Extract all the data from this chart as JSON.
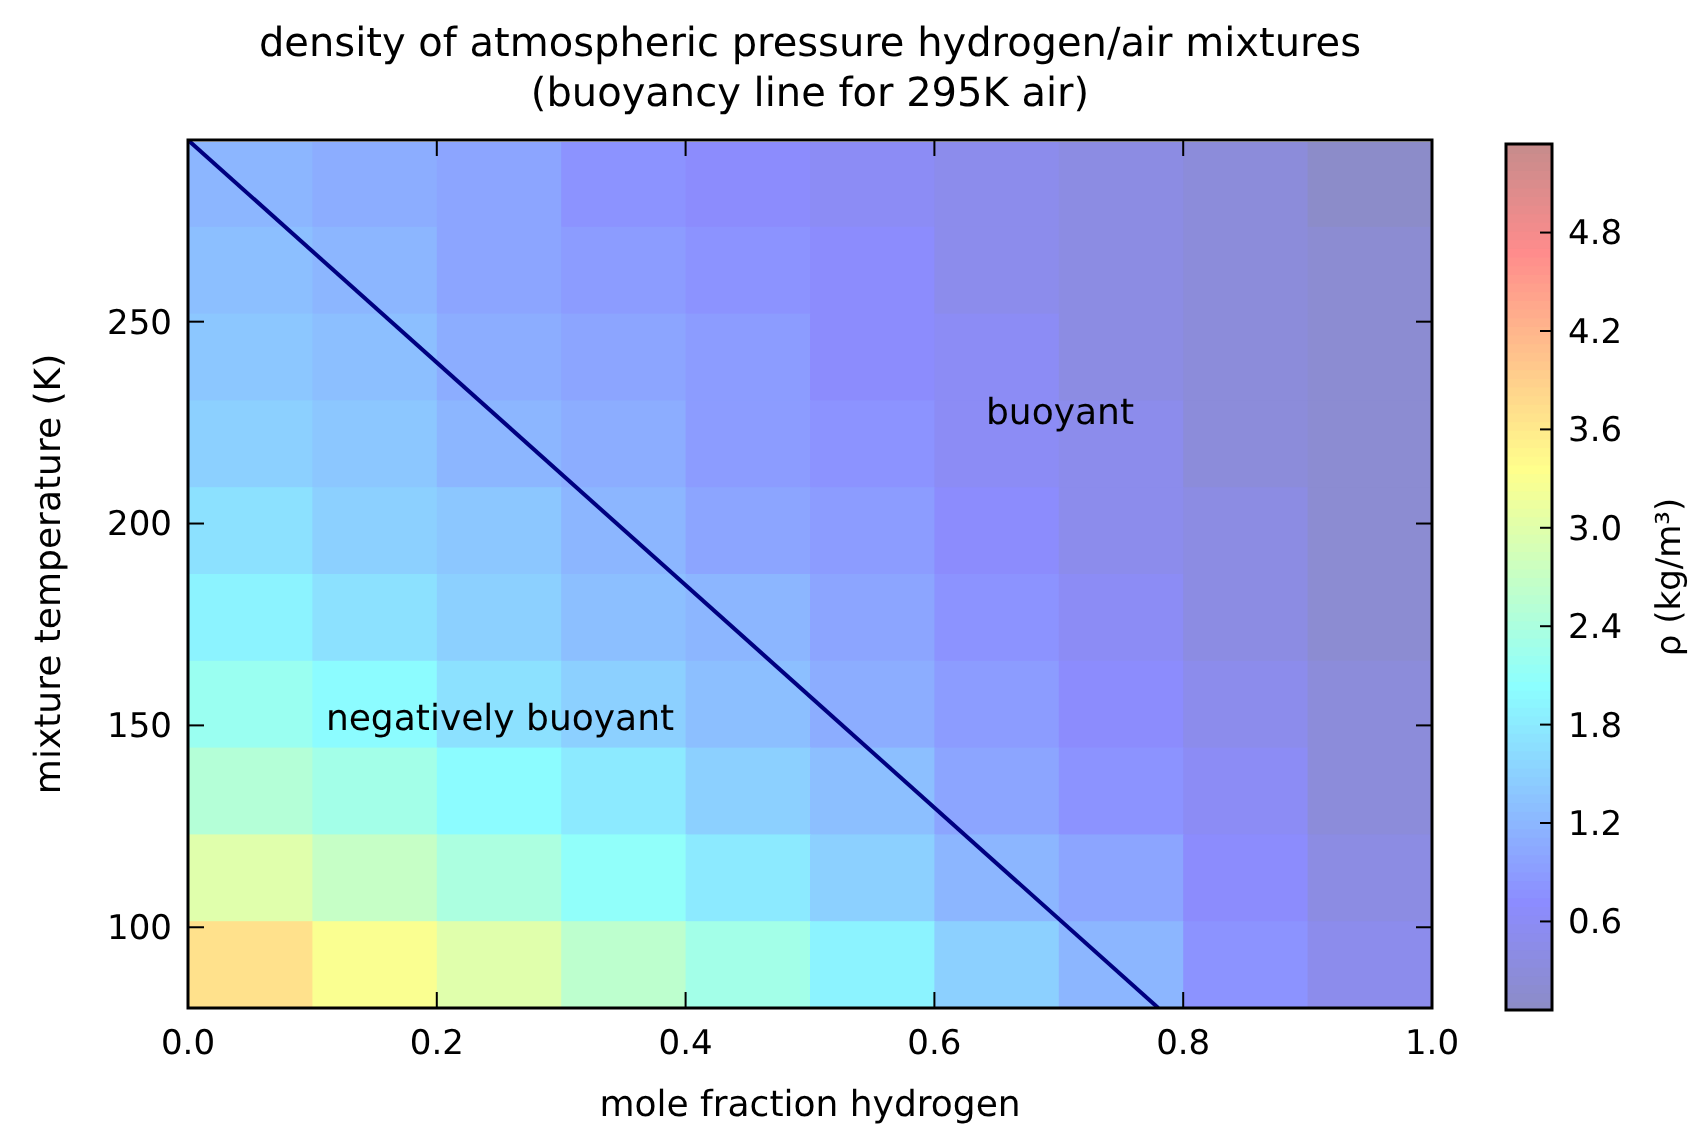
{
  "chart_data": {
    "type": "heatmap",
    "title": "density of atmospheric pressure hydrogen/air mixtures\n(buoyancy line for 295K air)",
    "xlabel": "mole fraction hydrogen",
    "ylabel": "mixture temperature (K)",
    "clabel": "ρ (kg/m³)",
    "x": [
      0.05,
      0.15,
      0.25,
      0.35,
      0.45,
      0.55,
      0.65,
      0.75,
      0.85,
      0.95
    ],
    "y": [
      284,
      263,
      241,
      220,
      198,
      177,
      155,
      134,
      112,
      91
    ],
    "cells": [
      [
        1.2,
        1.1,
        1.0,
        0.8,
        0.7,
        0.6,
        0.5,
        0.4,
        0.3,
        0.1
      ],
      [
        1.3,
        1.2,
        1.0,
        0.9,
        0.8,
        0.7,
        0.5,
        0.4,
        0.3,
        0.2
      ],
      [
        1.4,
        1.3,
        1.1,
        1.0,
        0.9,
        0.7,
        0.6,
        0.4,
        0.3,
        0.2
      ],
      [
        1.5,
        1.4,
        1.2,
        1.1,
        0.9,
        0.8,
        0.6,
        0.5,
        0.3,
        0.2
      ],
      [
        1.7,
        1.5,
        1.4,
        1.2,
        1.0,
        0.9,
        0.7,
        0.5,
        0.4,
        0.2
      ],
      [
        1.9,
        1.7,
        1.5,
        1.3,
        1.2,
        1.0,
        0.8,
        0.6,
        0.4,
        0.2
      ],
      [
        2.2,
        2.0,
        1.7,
        1.5,
        1.3,
        1.1,
        0.9,
        0.7,
        0.5,
        0.3
      ],
      [
        2.5,
        2.3,
        2.0,
        1.8,
        1.5,
        1.3,
        1.0,
        0.8,
        0.6,
        0.3
      ],
      [
        3.0,
        2.7,
        2.4,
        2.1,
        1.8,
        1.5,
        1.2,
        1.0,
        0.7,
        0.4
      ],
      [
        3.7,
        3.3,
        3.0,
        2.6,
        2.3,
        1.9,
        1.5,
        1.2,
        0.8,
        0.5
      ]
    ],
    "clim": [
      0.06,
      5.34
    ],
    "cticks": [
      {
        "value": 0.6,
        "label": "0.6"
      },
      {
        "value": 1.2,
        "label": "1.2"
      },
      {
        "value": 1.8,
        "label": "1.8"
      },
      {
        "value": 2.4,
        "label": "2.4"
      },
      {
        "value": 3.0,
        "label": "3.0"
      },
      {
        "value": 3.6,
        "label": "3.6"
      },
      {
        "value": 4.2,
        "label": "4.2"
      },
      {
        "value": 4.8,
        "label": "4.8"
      }
    ],
    "xlim": [
      0,
      1
    ],
    "xticks": [
      {
        "value": 0,
        "label": "0.0"
      },
      {
        "value": 0.2,
        "label": "0.2"
      },
      {
        "value": 0.4,
        "label": "0.4"
      },
      {
        "value": 0.6,
        "label": "0.6"
      },
      {
        "value": 0.8,
        "label": "0.8"
      },
      {
        "value": 1,
        "label": "1.0"
      }
    ],
    "ylim": [
      80,
      295
    ],
    "yticks": [
      100,
      150,
      200,
      250
    ],
    "series": [
      {
        "type": "line",
        "color": "#000080",
        "x": [
          0,
          0.78
        ],
        "values": [
          295,
          80
        ]
      }
    ],
    "annotations": [
      "buoyant",
      "negatively buoyant"
    ],
    "grid": false
  }
}
